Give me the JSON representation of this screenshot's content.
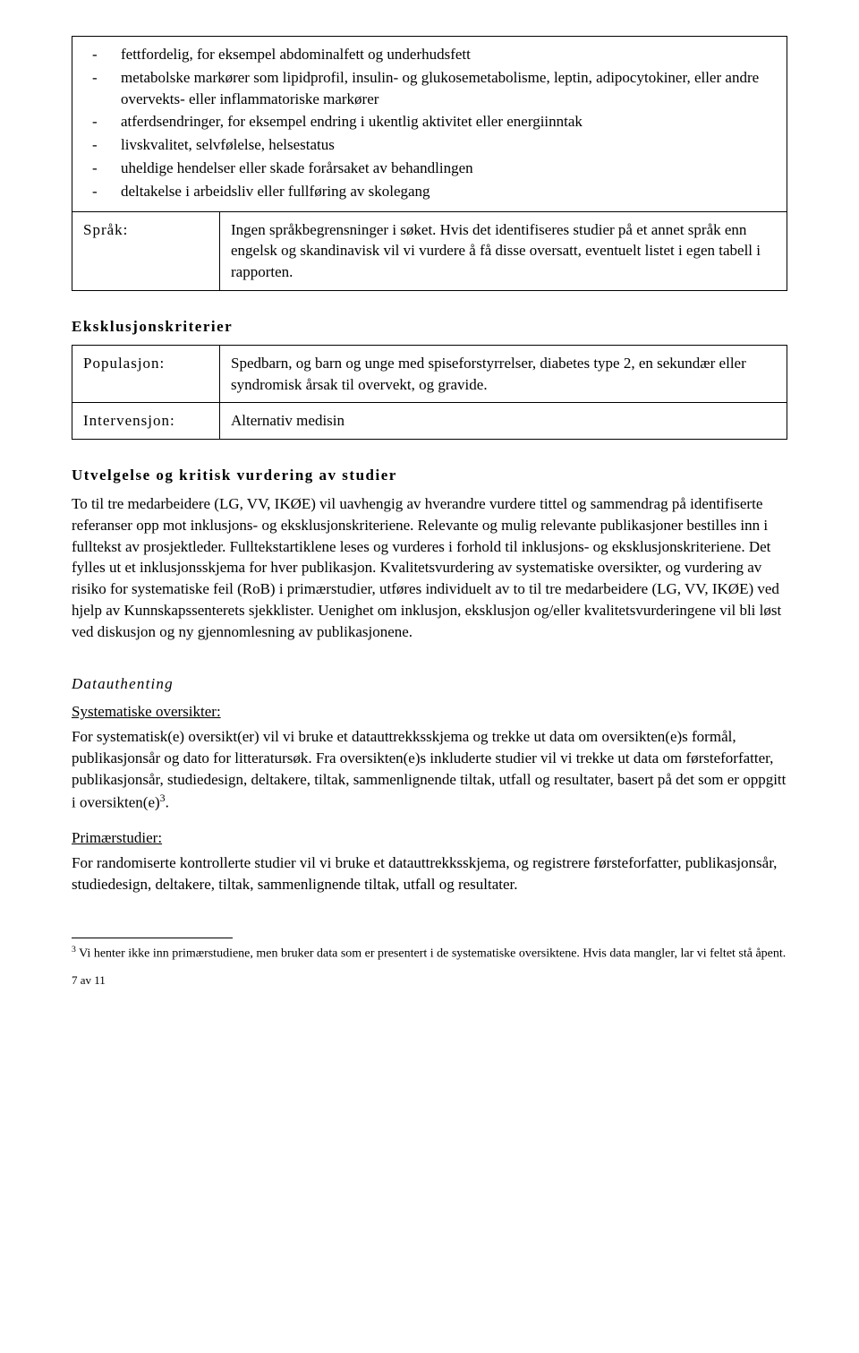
{
  "box1": {
    "bullets": [
      "fettfordelig, for eksempel abdominalfett og underhudsfett",
      "metabolske markører som lipidprofil, insulin- og glukosemetabolisme, leptin, adipocytokiner, eller andre overvekts- eller inflammatoriske markører",
      "atferdsendringer, for eksempel endring i ukentlig aktivitet eller energiinntak",
      "livskvalitet, selvfølelse, helsestatus",
      "uheldige hendelser eller skade forårsaket av behandlingen",
      "deltakelse i arbeidsliv eller fullføring av skolegang"
    ],
    "row2": {
      "label": "Språk:",
      "value": "Ingen språkbegrensninger i søket. Hvis det identifiseres studier på et annet språk enn engelsk og skandinavisk vil vi vurdere å få disse oversatt, eventuelt listet i egen tabell i rapporten."
    }
  },
  "eksklusjon": {
    "heading": "Eksklusjonskriterier",
    "rows": [
      {
        "label": "Populasjon:",
        "value": "Spedbarn, og barn og unge med spiseforstyrrelser, diabetes type 2, en sekundær eller syndromisk årsak til overvekt, og gravide."
      },
      {
        "label": "Intervensjon:",
        "value": "Alternativ medisin"
      }
    ]
  },
  "utvelgelse": {
    "heading": "Utvelgelse og kritisk vurdering av studier",
    "para": "To til tre medarbeidere (LG, VV, IKØE) vil uavhengig av hverandre vurdere tittel og sammendrag på identifiserte referanser opp mot inklusjons- og eksklusjonskriteriene. Relevante og mulig relevante publikasjoner bestilles inn i fulltekst av prosjektleder. Fulltekstartiklene leses og vurderes i forhold til inklusjons- og eksklusjonskriteriene. Det fylles ut et inklusjonsskjema for hver publikasjon. Kvalitetsvurdering av systematiske oversikter, og vurdering av risiko for systematiske feil (RoB) i primærstudier, utføres individuelt av to til tre medarbeidere (LG, VV, IKØE) ved hjelp av Kunnskapssenterets sjekklister. Uenighet om inklusjon, eksklusjon og/eller kvalitetsvurderingene vil bli løst ved diskusjon og ny gjennomlesning av publikasjonene."
  },
  "datauthenting": {
    "heading": "Datauthenting",
    "sys_heading": "Systematiske oversikter:",
    "sys_para_pre": "For systematisk(e) oversikt(er) vil vi bruke et datauttrekksskjema og trekke ut data om oversikten(e)s formål, publikasjonsår og dato for litteratursøk. Fra oversikten(e)s inkluderte studier vil vi trekke ut data om førsteforfatter, publikasjonsår, studiedesign, deltakere, tiltak, sammenlignende tiltak, utfall og resultater, basert på det som er oppgitt i oversikten(e)",
    "sys_sup": "3",
    "sys_para_post": ".",
    "prim_heading": "Primærstudier:",
    "prim_para": "For randomiserte kontrollerte studier vil vi bruke et datauttrekksskjema, og registrere førsteforfatter, publikasjonsår, studiedesign, deltakere, tiltak, sammenlignende tiltak, utfall og resultater."
  },
  "footnote": {
    "num": "3",
    "text": " Vi henter ikke inn primærstudiene, men bruker data som er presentert i de systematiske oversiktene. Hvis data mangler, lar vi feltet stå åpent."
  },
  "pagenum": "7 av 11"
}
